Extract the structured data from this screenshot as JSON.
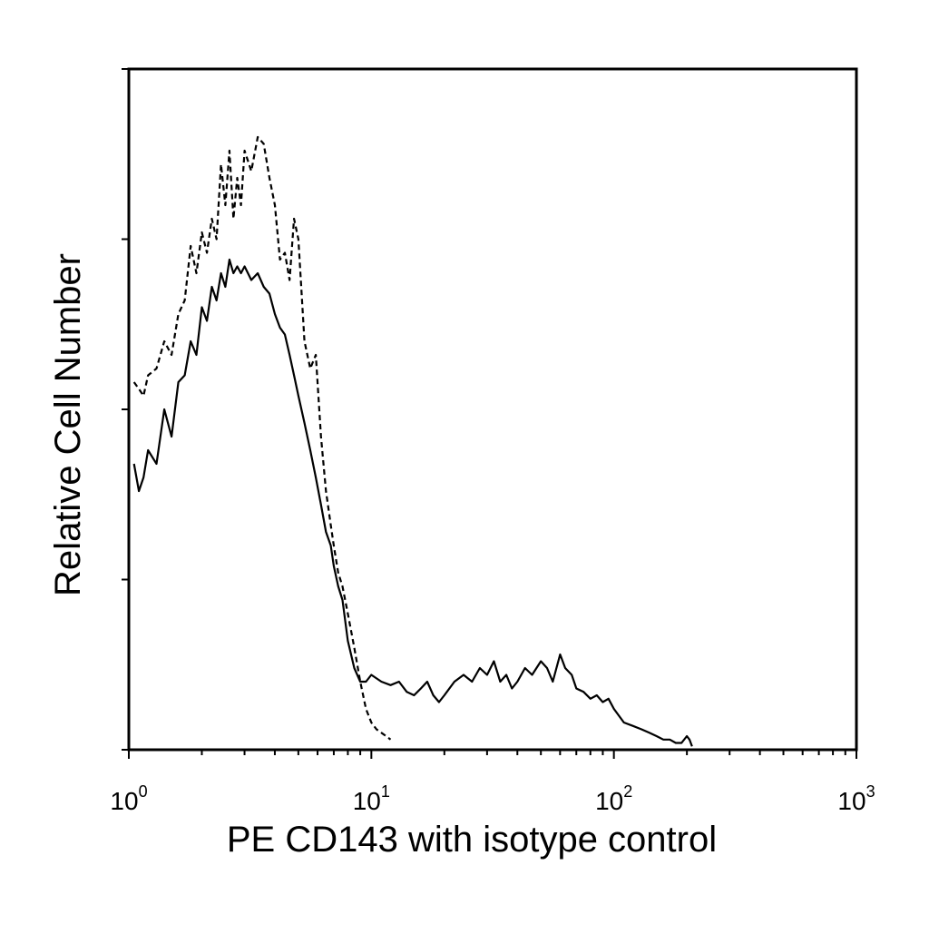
{
  "chart_data": {
    "type": "line",
    "title": "",
    "xlabel": "PE CD143 with isotype control",
    "ylabel": "Relative Cell Number",
    "x_scale": "log",
    "xlim": [
      1,
      1000
    ],
    "ylim": [
      0,
      1
    ],
    "grid": false,
    "legend": "none",
    "x_ticks": [
      {
        "base": "10",
        "exp": "0",
        "value": 1
      },
      {
        "base": "10",
        "exp": "1",
        "value": 10
      },
      {
        "base": "10",
        "exp": "2",
        "value": 100
      },
      {
        "base": "10",
        "exp": "3",
        "value": 1000
      }
    ],
    "y_ticks": [
      0,
      0.25,
      0.5,
      0.75,
      1.0
    ],
    "series": [
      {
        "style": "solid",
        "color": "#000000",
        "x": [
          1.05,
          1.1,
          1.15,
          1.2,
          1.3,
          1.4,
          1.5,
          1.6,
          1.7,
          1.8,
          1.9,
          2.0,
          2.1,
          2.2,
          2.3,
          2.4,
          2.5,
          2.6,
          2.7,
          2.8,
          2.9,
          3.0,
          3.2,
          3.4,
          3.6,
          3.8,
          4.0,
          4.2,
          4.4,
          4.6,
          4.8,
          5.0,
          5.3,
          5.6,
          5.9,
          6.2,
          6.5,
          6.8,
          7.0,
          7.3,
          7.6,
          8.0,
          8.5,
          9.0,
          9.5,
          10,
          11,
          12,
          13,
          14,
          15,
          16,
          17,
          18,
          19,
          20,
          22,
          24,
          26,
          28,
          30,
          32,
          34,
          36,
          38,
          40,
          43,
          46,
          50,
          53,
          56,
          60,
          63,
          67,
          70,
          75,
          80,
          85,
          90,
          95,
          100,
          110,
          120,
          130,
          140,
          150,
          160,
          170,
          180,
          190,
          200,
          205,
          210
        ],
        "y": [
          0.42,
          0.38,
          0.4,
          0.44,
          0.42,
          0.5,
          0.46,
          0.54,
          0.55,
          0.6,
          0.58,
          0.65,
          0.63,
          0.68,
          0.66,
          0.7,
          0.68,
          0.72,
          0.7,
          0.71,
          0.7,
          0.71,
          0.69,
          0.7,
          0.68,
          0.67,
          0.64,
          0.62,
          0.61,
          0.58,
          0.55,
          0.52,
          0.48,
          0.44,
          0.4,
          0.36,
          0.32,
          0.3,
          0.27,
          0.24,
          0.22,
          0.16,
          0.12,
          0.1,
          0.1,
          0.11,
          0.1,
          0.095,
          0.1,
          0.085,
          0.08,
          0.09,
          0.1,
          0.08,
          0.07,
          0.08,
          0.1,
          0.11,
          0.1,
          0.12,
          0.11,
          0.13,
          0.1,
          0.11,
          0.09,
          0.1,
          0.12,
          0.11,
          0.13,
          0.12,
          0.1,
          0.14,
          0.12,
          0.11,
          0.09,
          0.085,
          0.075,
          0.08,
          0.07,
          0.075,
          0.06,
          0.04,
          0.035,
          0.03,
          0.025,
          0.02,
          0.015,
          0.015,
          0.01,
          0.01,
          0.02,
          0.015,
          0.005
        ]
      },
      {
        "style": "dashed",
        "color": "#000000",
        "x": [
          1.05,
          1.1,
          1.15,
          1.2,
          1.3,
          1.4,
          1.5,
          1.6,
          1.7,
          1.8,
          1.9,
          2.0,
          2.1,
          2.2,
          2.3,
          2.4,
          2.5,
          2.6,
          2.7,
          2.8,
          2.9,
          3.0,
          3.2,
          3.4,
          3.6,
          3.8,
          4.0,
          4.2,
          4.4,
          4.6,
          4.8,
          5.0,
          5.3,
          5.6,
          5.9,
          6.2,
          6.5,
          6.8,
          7.0,
          7.3,
          7.6,
          8.0,
          8.5,
          9.0,
          9.5,
          10,
          10.5,
          11,
          11.5,
          12
        ],
        "y": [
          0.54,
          0.53,
          0.52,
          0.55,
          0.56,
          0.6,
          0.58,
          0.64,
          0.66,
          0.74,
          0.7,
          0.76,
          0.73,
          0.78,
          0.75,
          0.86,
          0.8,
          0.88,
          0.78,
          0.84,
          0.8,
          0.88,
          0.85,
          0.9,
          0.89,
          0.84,
          0.8,
          0.72,
          0.73,
          0.69,
          0.78,
          0.75,
          0.6,
          0.56,
          0.58,
          0.46,
          0.38,
          0.33,
          0.3,
          0.26,
          0.24,
          0.2,
          0.15,
          0.1,
          0.06,
          0.04,
          0.03,
          0.025,
          0.02,
          0.015
        ]
      }
    ]
  }
}
